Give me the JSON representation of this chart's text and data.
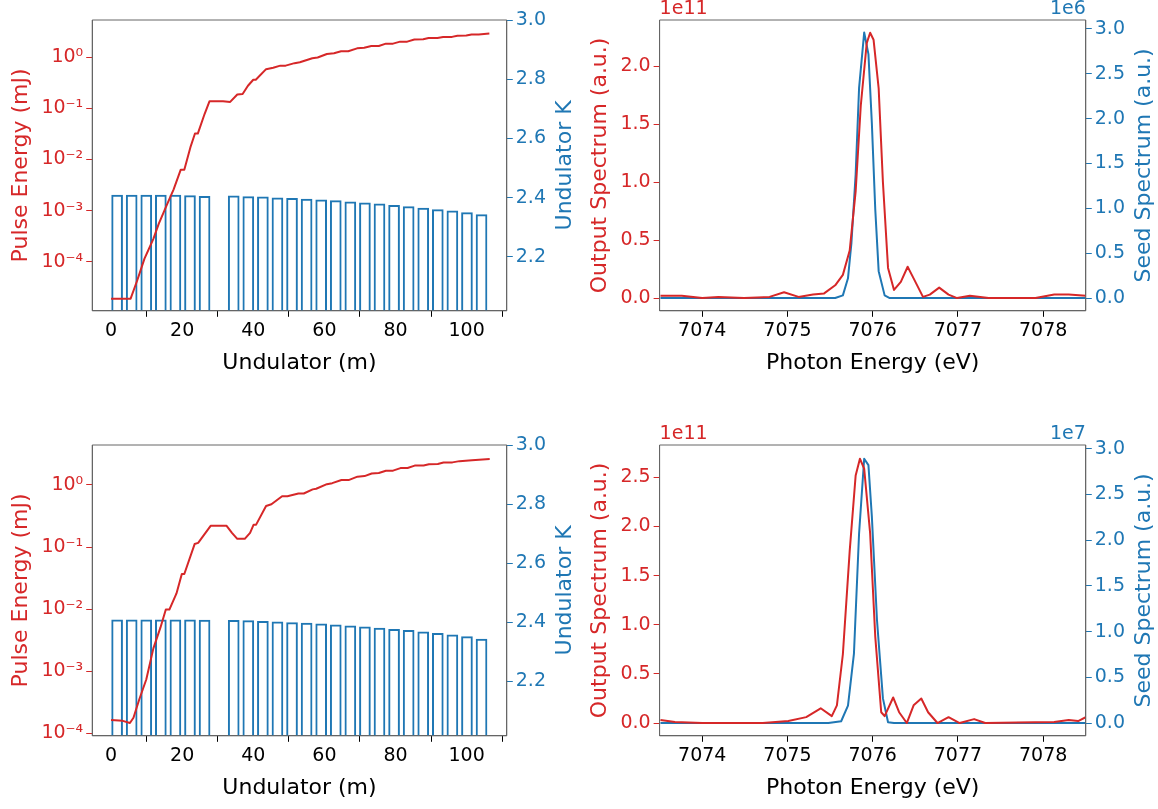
{
  "chart_data": [
    {
      "type": "line",
      "log": "y",
      "xlabel": "Undulator (m)",
      "ylabel": "Pulse Energy (mJ)",
      "y2label": "Undulator K",
      "grid": false,
      "xlim": [
        -5.3,
        111.3
      ],
      "xticks": [
        0,
        20,
        40,
        60,
        80,
        100
      ],
      "ylim": [
        1.1e-05,
        5.3
      ],
      "yticks": [
        {
          "value": 0.0001,
          "label": "10⁻⁴"
        },
        {
          "value": 0.001,
          "label": "10⁻³"
        },
        {
          "value": 0.01,
          "label": "10⁻²"
        },
        {
          "value": 0.1,
          "label": "10⁻¹"
        },
        {
          "value": 1,
          "label": "10⁰"
        }
      ],
      "y2lim": [
        2.018,
        3.0
      ],
      "y2ticks": [
        2.2,
        2.4,
        2.6,
        2.8,
        {
          "value": 3,
          "label": "3.0"
        }
      ],
      "series": [
        {
          "type": "bar",
          "axis": "y2",
          "color": "#1f77b4",
          "x": [
            1.7,
            5.8,
            9.9,
            14.0,
            18.1,
            22.2,
            26.3,
            34.5,
            38.6,
            42.7,
            46.8,
            50.9,
            55.0,
            59.1,
            63.2,
            67.3,
            71.4,
            75.5,
            79.6,
            83.7,
            87.8,
            91.9,
            96.0,
            100.1,
            104.2
          ],
          "values": [
            2.41,
            2.41,
            2.41,
            2.41,
            2.41,
            2.408,
            2.406,
            2.407,
            2.405,
            2.404,
            2.401,
            2.399,
            2.396,
            2.394,
            2.391,
            2.387,
            2.384,
            2.38,
            2.375,
            2.371,
            2.366,
            2.361,
            2.357,
            2.351,
            2.344
          ]
        },
        {
          "color": "#d62728",
          "x": [
            0,
            4.8,
            5.5,
            7.3,
            9.4,
            11.9,
            13.4,
            15.9,
            17.6,
            19.6,
            20.6,
            22.4,
            23.6,
            24.4,
            26.3,
            27.7,
            31.5,
            33.5,
            35.5,
            37,
            38.5,
            40,
            40.7,
            43.6,
            45.6,
            47.6,
            49.1,
            51.6,
            53.1,
            56.6,
            58.1,
            60.7,
            62.7,
            64.7,
            66.7,
            69.2,
            71.2,
            73.2,
            75.3,
            77.3,
            79.3,
            81.3,
            83.3,
            85.3,
            87.8,
            89.3,
            91.8,
            93.4,
            95.9,
            97.4,
            99.9,
            101.4,
            103.4,
            106.4
          ],
          "values": [
            1.9e-05,
            1.9e-05,
            1.9e-05,
            4.2e-05,
            0.000115,
            0.00028,
            0.00055,
            0.0014,
            0.0026,
            0.0063,
            0.0063,
            0.018,
            0.032,
            0.032,
            0.077,
            0.137,
            0.137,
            0.133,
            0.186,
            0.19,
            0.275,
            0.36,
            0.36,
            0.58,
            0.62,
            0.68,
            0.68,
            0.76,
            0.79,
            0.95,
            0.98,
            1.15,
            1.19,
            1.3,
            1.3,
            1.48,
            1.52,
            1.64,
            1.64,
            1.83,
            1.83,
            2.0,
            2.0,
            2.2,
            2.22,
            2.35,
            2.36,
            2.46,
            2.48,
            2.62,
            2.63,
            2.75,
            2.76,
            2.88
          ]
        }
      ]
    },
    {
      "type": "line",
      "xlabel": "Photon Energy (eV)",
      "ylabel": "Output Spectrum (a.u.)",
      "y2label": "Seed Spectrum (a.u.)",
      "grid": false,
      "annotations": [
        "1e11",
        "1e6"
      ],
      "xlim": [
        7073.5,
        7078.5
      ],
      "xticks": [
        7074,
        7075,
        7076,
        7077,
        7078
      ],
      "ylim": [
        -0.11,
        2.4
      ],
      "yticks": [
        {
          "value": 0,
          "label": "0.0"
        },
        0.5,
        {
          "value": 1,
          "label": "1.0"
        },
        1.5,
        {
          "value": 2,
          "label": "2.0"
        }
      ],
      "y2lim": [
        -0.142,
        3.1
      ],
      "y2ticks": [
        {
          "value": 0,
          "label": "0.0"
        },
        0.5,
        {
          "value": 1,
          "label": "1.0"
        },
        1.5,
        {
          "value": 2,
          "label": "2.0"
        },
        2.5,
        {
          "value": 3,
          "label": "3.0"
        }
      ],
      "series": [
        {
          "color": "#d62728",
          "x": [
            7073.51,
            7073.76,
            7074,
            7074.19,
            7074.49,
            7074.79,
            7074.96,
            7075.13,
            7075.3,
            7075.43,
            7075.56,
            7075.65,
            7075.73,
            7075.8,
            7075.86,
            7075.93,
            7075.97,
            7076.01,
            7076.07,
            7076.12,
            7076.18,
            7076.25,
            7076.33,
            7076.41,
            7076.48,
            7076.59,
            7076.67,
            7076.78,
            7076.89,
            7076.99,
            7077.14,
            7077.36,
            7077.91,
            7078.13,
            7078.3,
            7078.5
          ],
          "values": [
            0.02,
            0.02,
            0,
            0.01,
            0,
            0.01,
            0.05,
            0.01,
            0.03,
            0.04,
            0.11,
            0.2,
            0.41,
            0.92,
            1.66,
            2.2,
            2.29,
            2.23,
            1.81,
            1.0,
            0.26,
            0.07,
            0.14,
            0.27,
            0.17,
            0.01,
            0.03,
            0.09,
            0.03,
            0,
            0.02,
            0,
            0,
            0.03,
            0.03,
            0.02
          ]
        },
        {
          "axis": "y2",
          "color": "#1f77b4",
          "x": [
            7073.51,
            7075.56,
            7075.65,
            7075.71,
            7075.75,
            7075.8,
            7075.84,
            7075.9,
            7075.95,
            7075.99,
            7076.03,
            7076.07,
            7076.14,
            7076.2,
            7078.5
          ],
          "values": [
            0,
            0,
            0.03,
            0.22,
            0.61,
            1.38,
            2.34,
            2.96,
            2.72,
            1.95,
            0.99,
            0.3,
            0.03,
            0,
            0
          ]
        }
      ]
    },
    {
      "type": "line",
      "log": "y",
      "xlabel": "Undulator (m)",
      "ylabel": "Pulse Energy (mJ)",
      "y2label": "Undulator K",
      "grid": false,
      "xlim": [
        -5.3,
        111.3
      ],
      "xticks": [
        0,
        20,
        40,
        60,
        80,
        100
      ],
      "ylim": [
        9.2e-05,
        4.4
      ],
      "yticks": [
        {
          "value": 0.0001,
          "label": "10⁻⁴"
        },
        {
          "value": 0.001,
          "label": "10⁻³"
        },
        {
          "value": 0.01,
          "label": "10⁻²"
        },
        {
          "value": 0.1,
          "label": "10⁻¹"
        },
        {
          "value": 1,
          "label": "10⁰"
        }
      ],
      "y2lim": [
        2.015,
        3.0
      ],
      "y2ticks": [
        2.2,
        2.4,
        2.6,
        2.8,
        {
          "value": 3,
          "label": "3.0"
        }
      ],
      "series": [
        {
          "type": "bar",
          "axis": "y2",
          "color": "#1f77b4",
          "x": [
            1.7,
            5.8,
            9.9,
            14.0,
            18.1,
            22.2,
            26.3,
            34.5,
            38.6,
            42.7,
            46.8,
            50.9,
            55.0,
            59.1,
            63.2,
            67.3,
            71.4,
            75.5,
            79.6,
            83.7,
            87.8,
            91.9,
            96.0,
            100.1,
            104.2
          ],
          "values": [
            2.409,
            2.409,
            2.409,
            2.409,
            2.409,
            2.409,
            2.408,
            2.407,
            2.406,
            2.404,
            2.402,
            2.4,
            2.398,
            2.395,
            2.392,
            2.389,
            2.385,
            2.381,
            2.377,
            2.373,
            2.368,
            2.363,
            2.358,
            2.352,
            2.344
          ]
        },
        {
          "color": "#d62728",
          "x": [
            0,
            3.3,
            5.3,
            6.3,
            7.9,
            9.9,
            11.9,
            13.9,
            15.4,
            16.4,
            18.4,
            19.9,
            20.6,
            23.5,
            24.5,
            28,
            32.5,
            34,
            35.5,
            37.6,
            39.1,
            40.1,
            40.8,
            43.6,
            45.1,
            48.1,
            49.6,
            52.7,
            54.2,
            56.7,
            57.7,
            60.7,
            62.2,
            64.8,
            66.8,
            69.3,
            71.3,
            73.3,
            75.3,
            77.3,
            79.3,
            81.4,
            83.4,
            85.4,
            87.9,
            89.4,
            91.9,
            93.5,
            96,
            98,
            101.5,
            106.5
          ],
          "values": [
            0.000165,
            0.00016,
            0.000148,
            0.00018,
            0.00035,
            0.00074,
            0.00235,
            0.0051,
            0.0099,
            0.0099,
            0.018,
            0.037,
            0.037,
            0.112,
            0.117,
            0.22,
            0.22,
            0.17,
            0.136,
            0.136,
            0.17,
            0.23,
            0.23,
            0.46,
            0.49,
            0.66,
            0.66,
            0.73,
            0.73,
            0.85,
            0.87,
            1.03,
            1.07,
            1.2,
            1.2,
            1.36,
            1.39,
            1.53,
            1.56,
            1.69,
            1.7,
            1.87,
            1.88,
            2.05,
            2.06,
            2.15,
            2.17,
            2.3,
            2.31,
            2.42,
            2.51,
            2.61
          ]
        }
      ]
    },
    {
      "type": "line",
      "xlabel": "Photon Energy (eV)",
      "ylabel": "Output Spectrum (a.u.)",
      "y2label": "Seed Spectrum (a.u.)",
      "grid": false,
      "annotations": [
        "1e11",
        "1e7"
      ],
      "xlim": [
        7073.5,
        7078.5
      ],
      "xticks": [
        7074,
        7075,
        7076,
        7077,
        7078
      ],
      "ylim": [
        -0.13,
        2.83
      ],
      "yticks": [
        {
          "value": 0,
          "label": "0.0"
        },
        0.5,
        {
          "value": 1,
          "label": "1.0"
        },
        1.5,
        {
          "value": 2,
          "label": "2.0"
        },
        2.5
      ],
      "y2lim": [
        -0.139,
        3.04
      ],
      "y2ticks": [
        {
          "value": 0,
          "label": "0.0"
        },
        0.5,
        {
          "value": 1,
          "label": "1.0"
        },
        1.5,
        {
          "value": 2,
          "label": "2.0"
        },
        2.5,
        {
          "value": 3,
          "label": "3.0"
        }
      ],
      "series": [
        {
          "color": "#d62728",
          "x": [
            7073.51,
            7073.68,
            7074,
            7074.71,
            7075.01,
            7075.22,
            7075.39,
            7075.52,
            7075.58,
            7075.65,
            7075.73,
            7075.8,
            7075.85,
            7075.9,
            7075.97,
            7076.03,
            7076.1,
            7076.14,
            7076.24,
            7076.31,
            7076.4,
            7076.48,
            7076.57,
            7076.65,
            7076.76,
            7076.89,
            7077.02,
            7077.19,
            7077.32,
            7078.13,
            7078.3,
            7078.41,
            7078.5
          ],
          "values": [
            0.03,
            0.01,
            0,
            0,
            0.02,
            0.06,
            0.15,
            0.07,
            0.18,
            0.7,
            1.75,
            2.52,
            2.69,
            2.59,
            1.93,
            0.88,
            0.11,
            0.07,
            0.26,
            0.11,
            0,
            0.18,
            0.25,
            0.11,
            0,
            0.06,
            0,
            0.04,
            0,
            0.01,
            0.03,
            0.02,
            0.06
          ]
        },
        {
          "axis": "y2",
          "color": "#1f77b4",
          "x": [
            7073.51,
            7075.48,
            7075.63,
            7075.71,
            7075.78,
            7075.84,
            7075.9,
            7075.95,
            7075.99,
            7076.05,
            7076.12,
            7076.18,
            7076.25,
            7078.5
          ],
          "values": [
            0,
            0,
            0.02,
            0.19,
            0.76,
            2.07,
            2.89,
            2.82,
            2.26,
            1.13,
            0.27,
            0.01,
            0,
            0
          ]
        }
      ]
    }
  ]
}
